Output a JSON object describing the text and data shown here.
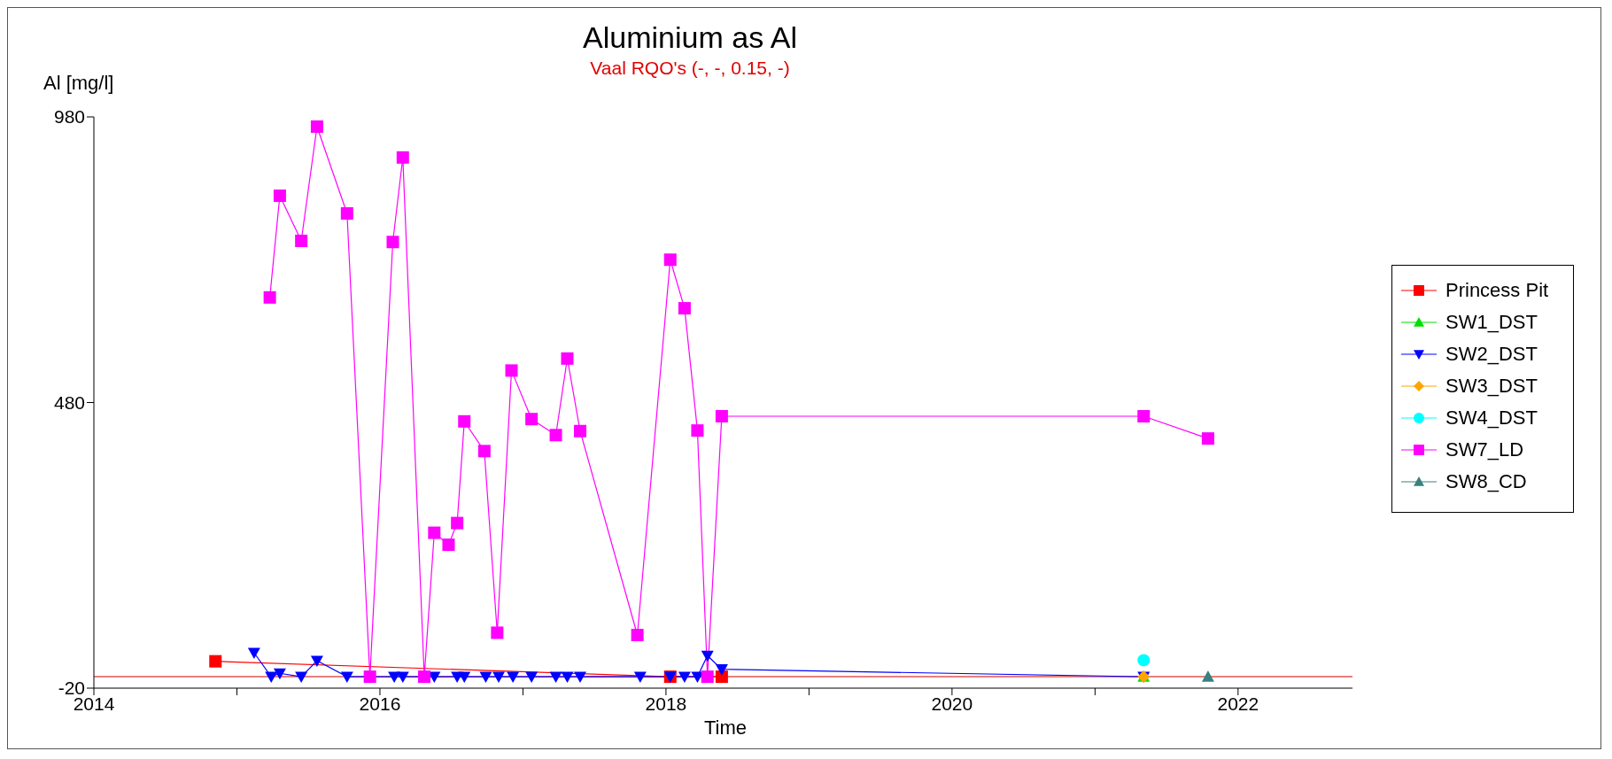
{
  "chart_data": {
    "type": "line",
    "title": "Aluminium as Al",
    "subtitle": "Vaal RQO's (-, -, 0.15, -)",
    "xlabel": "Time",
    "ylabel": "Al [mg/l]",
    "xlim": [
      2014,
      2022.8
    ],
    "xticks": [
      2014,
      {
        "value": 2015,
        "label": null
      },
      2016,
      {
        "value": 2017,
        "label": null
      },
      2018,
      {
        "value": 2019,
        "label": null
      },
      2020,
      {
        "value": 2021,
        "label": null
      },
      2022
    ],
    "ylim": [
      -20,
      980
    ],
    "yticks": [
      -20,
      480,
      980
    ],
    "grid": false,
    "legend": "right",
    "ref_lines": [
      {
        "axis": "y",
        "value": 0.15,
        "color": "#d40000"
      }
    ],
    "series": [
      {
        "name": "Princess Pit",
        "color": "#ff0000",
        "marker": "square",
        "x": [
          2014.85,
          2018.03,
          2018.39
        ],
        "values": [
          27,
          0,
          0
        ]
      },
      {
        "name": "SW1_DST",
        "color": "#00e000",
        "marker": "triangle",
        "x": [
          2021.34
        ],
        "values": [
          0
        ]
      },
      {
        "name": "SW2_DST",
        "color": "#0000ff",
        "marker": "triangle-down",
        "x": [
          2015.12,
          2015.24,
          2015.3,
          2015.45,
          2015.56,
          2015.77,
          2016.1,
          2016.16,
          2016.38,
          2016.54,
          2016.59,
          2016.74,
          2016.83,
          2016.93,
          2017.06,
          2017.23,
          2017.31,
          2017.4,
          2017.82,
          2018.03,
          2018.13,
          2018.22,
          2018.29,
          2018.39,
          2021.34
        ],
        "values": [
          42,
          0,
          6,
          0,
          28,
          0,
          0,
          0,
          0,
          0,
          0,
          0,
          0,
          0,
          0,
          0,
          0,
          0,
          0,
          0,
          0,
          0,
          37,
          13,
          0
        ]
      },
      {
        "name": "SW3_DST",
        "color": "#ffa500",
        "marker": "diamond",
        "x": [
          2021.34
        ],
        "values": [
          0
        ]
      },
      {
        "name": "SW4_DST",
        "color": "#00ffff",
        "marker": "circle",
        "x": [
          2021.34
        ],
        "values": [
          29
        ]
      },
      {
        "name": "SW7_LD",
        "color": "#ff00ff",
        "marker": "square",
        "x": [
          2015.23,
          2015.3,
          2015.45,
          2015.56,
          2015.77,
          2015.93,
          2016.09,
          2016.16,
          2016.31,
          2016.38,
          2016.48,
          2016.54,
          2016.59,
          2016.73,
          2016.82,
          2016.92,
          2017.06,
          2017.23,
          2017.31,
          2017.4,
          2017.8,
          2018.03,
          2018.13,
          2018.22,
          2018.29,
          2018.39,
          2021.34,
          2021.79
        ],
        "values": [
          664,
          842,
          763,
          963,
          811,
          0,
          761,
          909,
          0,
          252,
          231,
          269,
          447,
          395,
          77,
          536,
          451,
          423,
          557,
          430,
          73,
          730,
          645,
          431,
          0,
          456,
          456,
          417
        ]
      },
      {
        "name": "SW8_CD",
        "color": "#3a8080",
        "marker": "triangle",
        "x": [
          2021.79
        ],
        "values": [
          0
        ]
      }
    ]
  }
}
